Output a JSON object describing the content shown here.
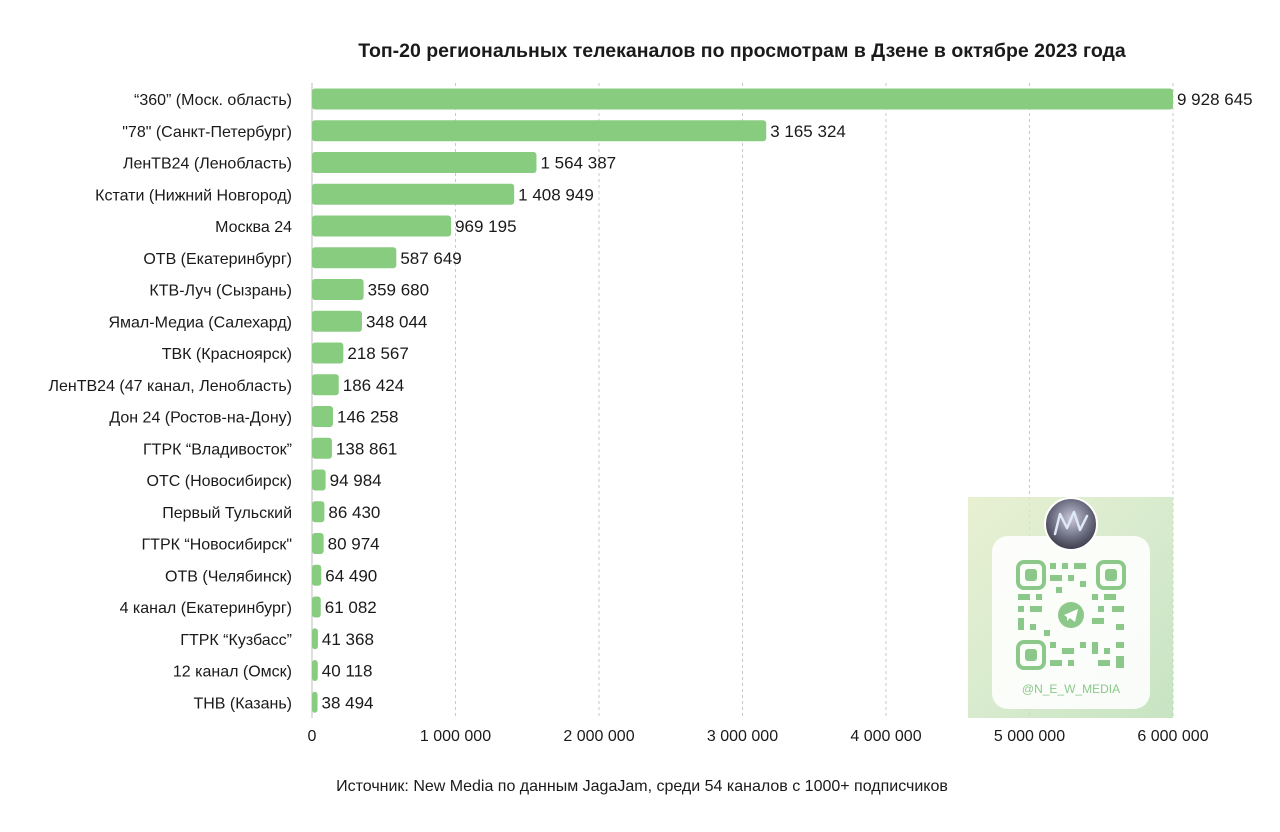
{
  "chart_data": {
    "type": "bar",
    "orientation": "horizontal",
    "title": "Топ-20 региональных телеканалов по просмотрам в Дзене в октябре 2023 года",
    "categories": [
      "“360” (Моск. область)",
      "\"78\" (Санкт-Петербург)",
      "ЛенТВ24 (Ленобласть)",
      "Кстати (Нижний Новгород)",
      "Москва 24",
      "ОТВ (Екатеринбург)",
      "КТВ-Луч (Сызрань)",
      "Ямал-Медиа (Салехард)",
      "ТВК (Красноярск)",
      "ЛенТВ24 (47 канал, Ленобласть)",
      "Дон 24 (Ростов-на-Дону)",
      "ГТРК “Владивосток”",
      "ОТС (Новосибирск)",
      "Первый Тульский",
      "ГТРК “Новосибирск\"",
      "ОТВ (Челябинск)",
      "4 канал (Екатеринбург)",
      "ГТРК “Кузбасс”",
      "12 канал (Омск)",
      "ТНВ (Казань)"
    ],
    "values": [
      9928645,
      3165324,
      1564387,
      1408949,
      969195,
      587649,
      359680,
      348044,
      218567,
      186424,
      146258,
      138861,
      94984,
      86430,
      80974,
      64490,
      61082,
      41368,
      40118,
      38494
    ],
    "value_labels": [
      "9 928 645",
      "3 165 324",
      "1 564 387",
      "1 408 949",
      "969 195",
      "587 649",
      "359 680",
      "348 044",
      "218 567",
      "186 424",
      "146 258",
      "138 861",
      "94 984",
      "86 430",
      "80 974",
      "64 490",
      "61 082",
      "41 368",
      "40 118",
      "38 494"
    ],
    "xlim": [
      0,
      6000000
    ],
    "x_ticks": [
      0,
      1000000,
      2000000,
      3000000,
      4000000,
      5000000,
      6000000
    ],
    "x_tick_labels": [
      "0",
      "1 000 000",
      "2 000 000",
      "3 000 000",
      "4 000 000",
      "5 000 000",
      "6 000 000"
    ],
    "xlabel": "",
    "ylabel": "",
    "grid": "vertical dashed",
    "bar_color": "#88cc80",
    "note": "first bar value exceeds axis range; bar clipped at axis end"
  },
  "source": "Источник: New Media по данным JagaJam, среди 54 каналов с 1000+ подписчиков",
  "watermark": {
    "handle": "@N_E_W_MEDIA",
    "logo_icon": "new-media-logo-icon",
    "qr_icon": "qr-code-icon",
    "telegram_icon": "telegram-icon",
    "accent": "#8cc88a"
  }
}
